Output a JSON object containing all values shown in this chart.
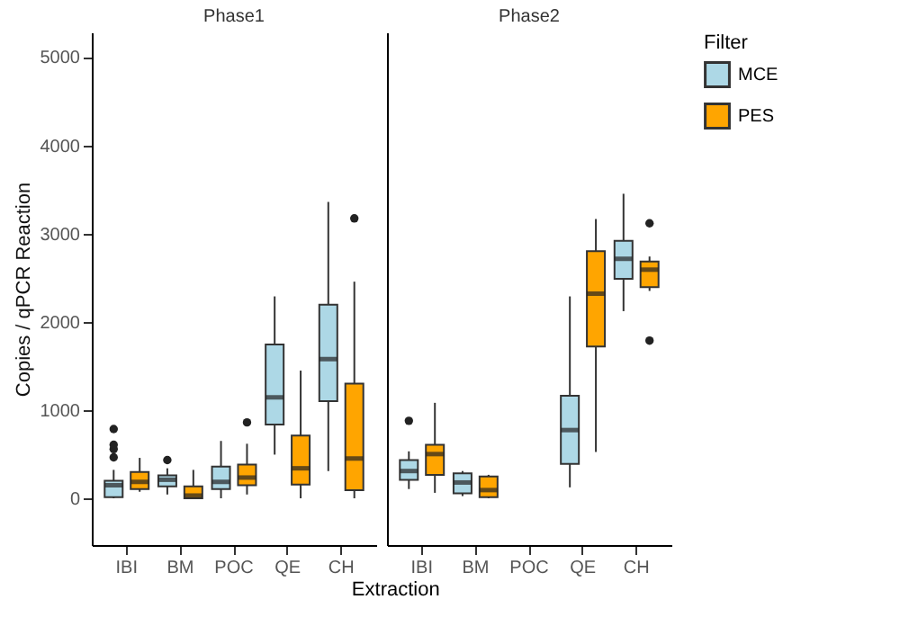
{
  "chart_data": [
    {
      "type": "box",
      "title": "Phase1",
      "xlabel": "Extraction",
      "ylabel": "Copies / qPCR Reaction",
      "categories": [
        "IBI",
        "BM",
        "POC",
        "QE",
        "CH"
      ],
      "ylim": [
        -530,
        5280
      ],
      "yticks": [
        0,
        1000,
        2000,
        3000,
        4000,
        5000
      ],
      "tick_labels": "xy",
      "legend": "right",
      "series": [
        {
          "name": "MCE",
          "color": "#add8e6",
          "boxes": [
            {
              "low": 0,
              "q1": 12,
              "median": 148,
              "q3": 198,
              "high": 322,
              "outliers": [
                464,
                557,
                606,
                785
              ]
            },
            {
              "low": 43,
              "q1": 136,
              "median": 210,
              "q3": 260,
              "high": 340,
              "outliers": [
                433
              ]
            },
            {
              "low": 0,
              "q1": 105,
              "median": 186,
              "q3": 359,
              "high": 650
            },
            {
              "low": 495,
              "q1": 835,
              "median": 1144,
              "q3": 1744,
              "high": 2288
            },
            {
              "low": 309,
              "q1": 1100,
              "median": 1577,
              "q3": 2195,
              "high": 3358
            }
          ]
        },
        {
          "name": "PES",
          "color": "#ffa500",
          "boxes": [
            {
              "low": 74,
              "q1": 105,
              "median": 186,
              "q3": 297,
              "high": 458
            },
            {
              "low": 0,
              "q1": 0,
              "median": 31,
              "q3": 136,
              "high": 322
            },
            {
              "low": 43,
              "q1": 148,
              "median": 235,
              "q3": 383,
              "high": 618,
              "outliers": [
                860
              ]
            },
            {
              "low": 0,
              "q1": 155,
              "median": 340,
              "q3": 711,
              "high": 1447
            },
            {
              "low": 0,
              "q1": 93,
              "median": 451,
              "q3": 1299,
              "high": 2455,
              "outliers": [
                3172
              ]
            }
          ]
        }
      ]
    },
    {
      "type": "box",
      "title": "Phase2",
      "categories": [
        "IBI",
        "BM",
        "POC",
        "QE",
        "CH"
      ],
      "ylim": [
        -530,
        5280
      ],
      "yticks": [
        0,
        1000,
        2000,
        3000,
        4000,
        5000
      ],
      "tick_labels": "x",
      "legend": "right",
      "legend_title": "Filter",
      "series": [
        {
          "name": "MCE",
          "color": "#add8e6",
          "boxes": [
            {
              "low": 105,
              "q1": 210,
              "median": 309,
              "q3": 433,
              "high": 532,
              "outliers": [
                878
              ]
            },
            {
              "low": 25,
              "q1": 56,
              "median": 179,
              "q3": 284,
              "high": 309
            },
            null,
            {
              "low": 124,
              "q1": 390,
              "median": 773,
              "q3": 1163,
              "high": 2288
            },
            {
              "low": 2121,
              "q1": 2486,
              "median": 2715,
              "q3": 2919,
              "high": 3451
            }
          ]
        },
        {
          "name": "PES",
          "color": "#ffa500",
          "boxes": [
            {
              "low": 62,
              "q1": 266,
              "median": 501,
              "q3": 606,
              "high": 1082
            },
            {
              "low": 0,
              "q1": 12,
              "median": 93,
              "q3": 247,
              "high": 266
            },
            null,
            {
              "low": 526,
              "q1": 1719,
              "median": 2319,
              "q3": 2801,
              "high": 3166
            },
            {
              "low": 2350,
              "q1": 2393,
              "median": 2591,
              "q3": 2684,
              "high": 2740,
              "outliers": [
                1787,
                3117
              ]
            }
          ]
        }
      ]
    }
  ]
}
